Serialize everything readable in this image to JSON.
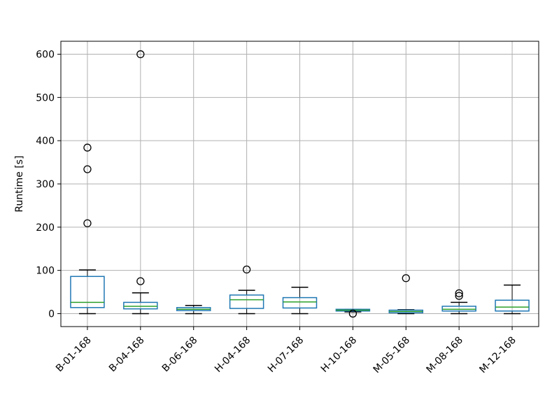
{
  "chart_data": {
    "type": "box",
    "title": "",
    "xlabel": "",
    "ylabel": "Runtime [s]",
    "ylim": [
      -30,
      630
    ],
    "yticks": [
      0,
      100,
      200,
      300,
      400,
      500,
      600
    ],
    "ytick_labels": [
      "0",
      "100",
      "200",
      "300",
      "400",
      "500",
      "600"
    ],
    "grid": true,
    "categories": [
      "B-01-168",
      "B-04-168",
      "B-06-168",
      "H-04-168",
      "H-07-168",
      "H-10-168",
      "M-05-168",
      "M-08-168",
      "M-12-168"
    ],
    "boxes": [
      {
        "whisker_low": 0,
        "q1": 14,
        "median": 26,
        "q3": 86,
        "whisker_high": 101,
        "outliers": [
          209,
          334,
          384
        ]
      },
      {
        "whisker_low": 0,
        "q1": 11,
        "median": 17,
        "q3": 26,
        "whisker_high": 48,
        "outliers": [
          75,
          600
        ]
      },
      {
        "whisker_low": 0,
        "q1": 7,
        "median": 10,
        "q3": 14,
        "whisker_high": 19,
        "outliers": []
      },
      {
        "whisker_low": 0,
        "q1": 12,
        "median": 32,
        "q3": 43,
        "whisker_high": 54,
        "outliers": [
          102
        ]
      },
      {
        "whisker_low": 0,
        "q1": 13,
        "median": 27,
        "q3": 37,
        "whisker_high": 61,
        "outliers": []
      },
      {
        "whisker_low": 4,
        "q1": 6,
        "median": 8,
        "q3": 10,
        "whisker_high": 10,
        "outliers": [
          0
        ]
      },
      {
        "whisker_low": 0,
        "q1": 2,
        "median": 5,
        "q3": 8,
        "whisker_high": 9,
        "outliers": [
          82
        ]
      },
      {
        "whisker_low": 0,
        "q1": 6,
        "median": 10,
        "q3": 17,
        "whisker_high": 26,
        "outliers": [
          41,
          47
        ]
      },
      {
        "whisker_low": 0,
        "q1": 6,
        "median": 15,
        "q3": 31,
        "whisker_high": 66,
        "outliers": []
      }
    ],
    "colors": {
      "box": "#1f77b4",
      "median": "#2ca02c",
      "whisker": "#000000",
      "grid": "#b0b0b0",
      "outlier_edge": "#000000"
    }
  }
}
